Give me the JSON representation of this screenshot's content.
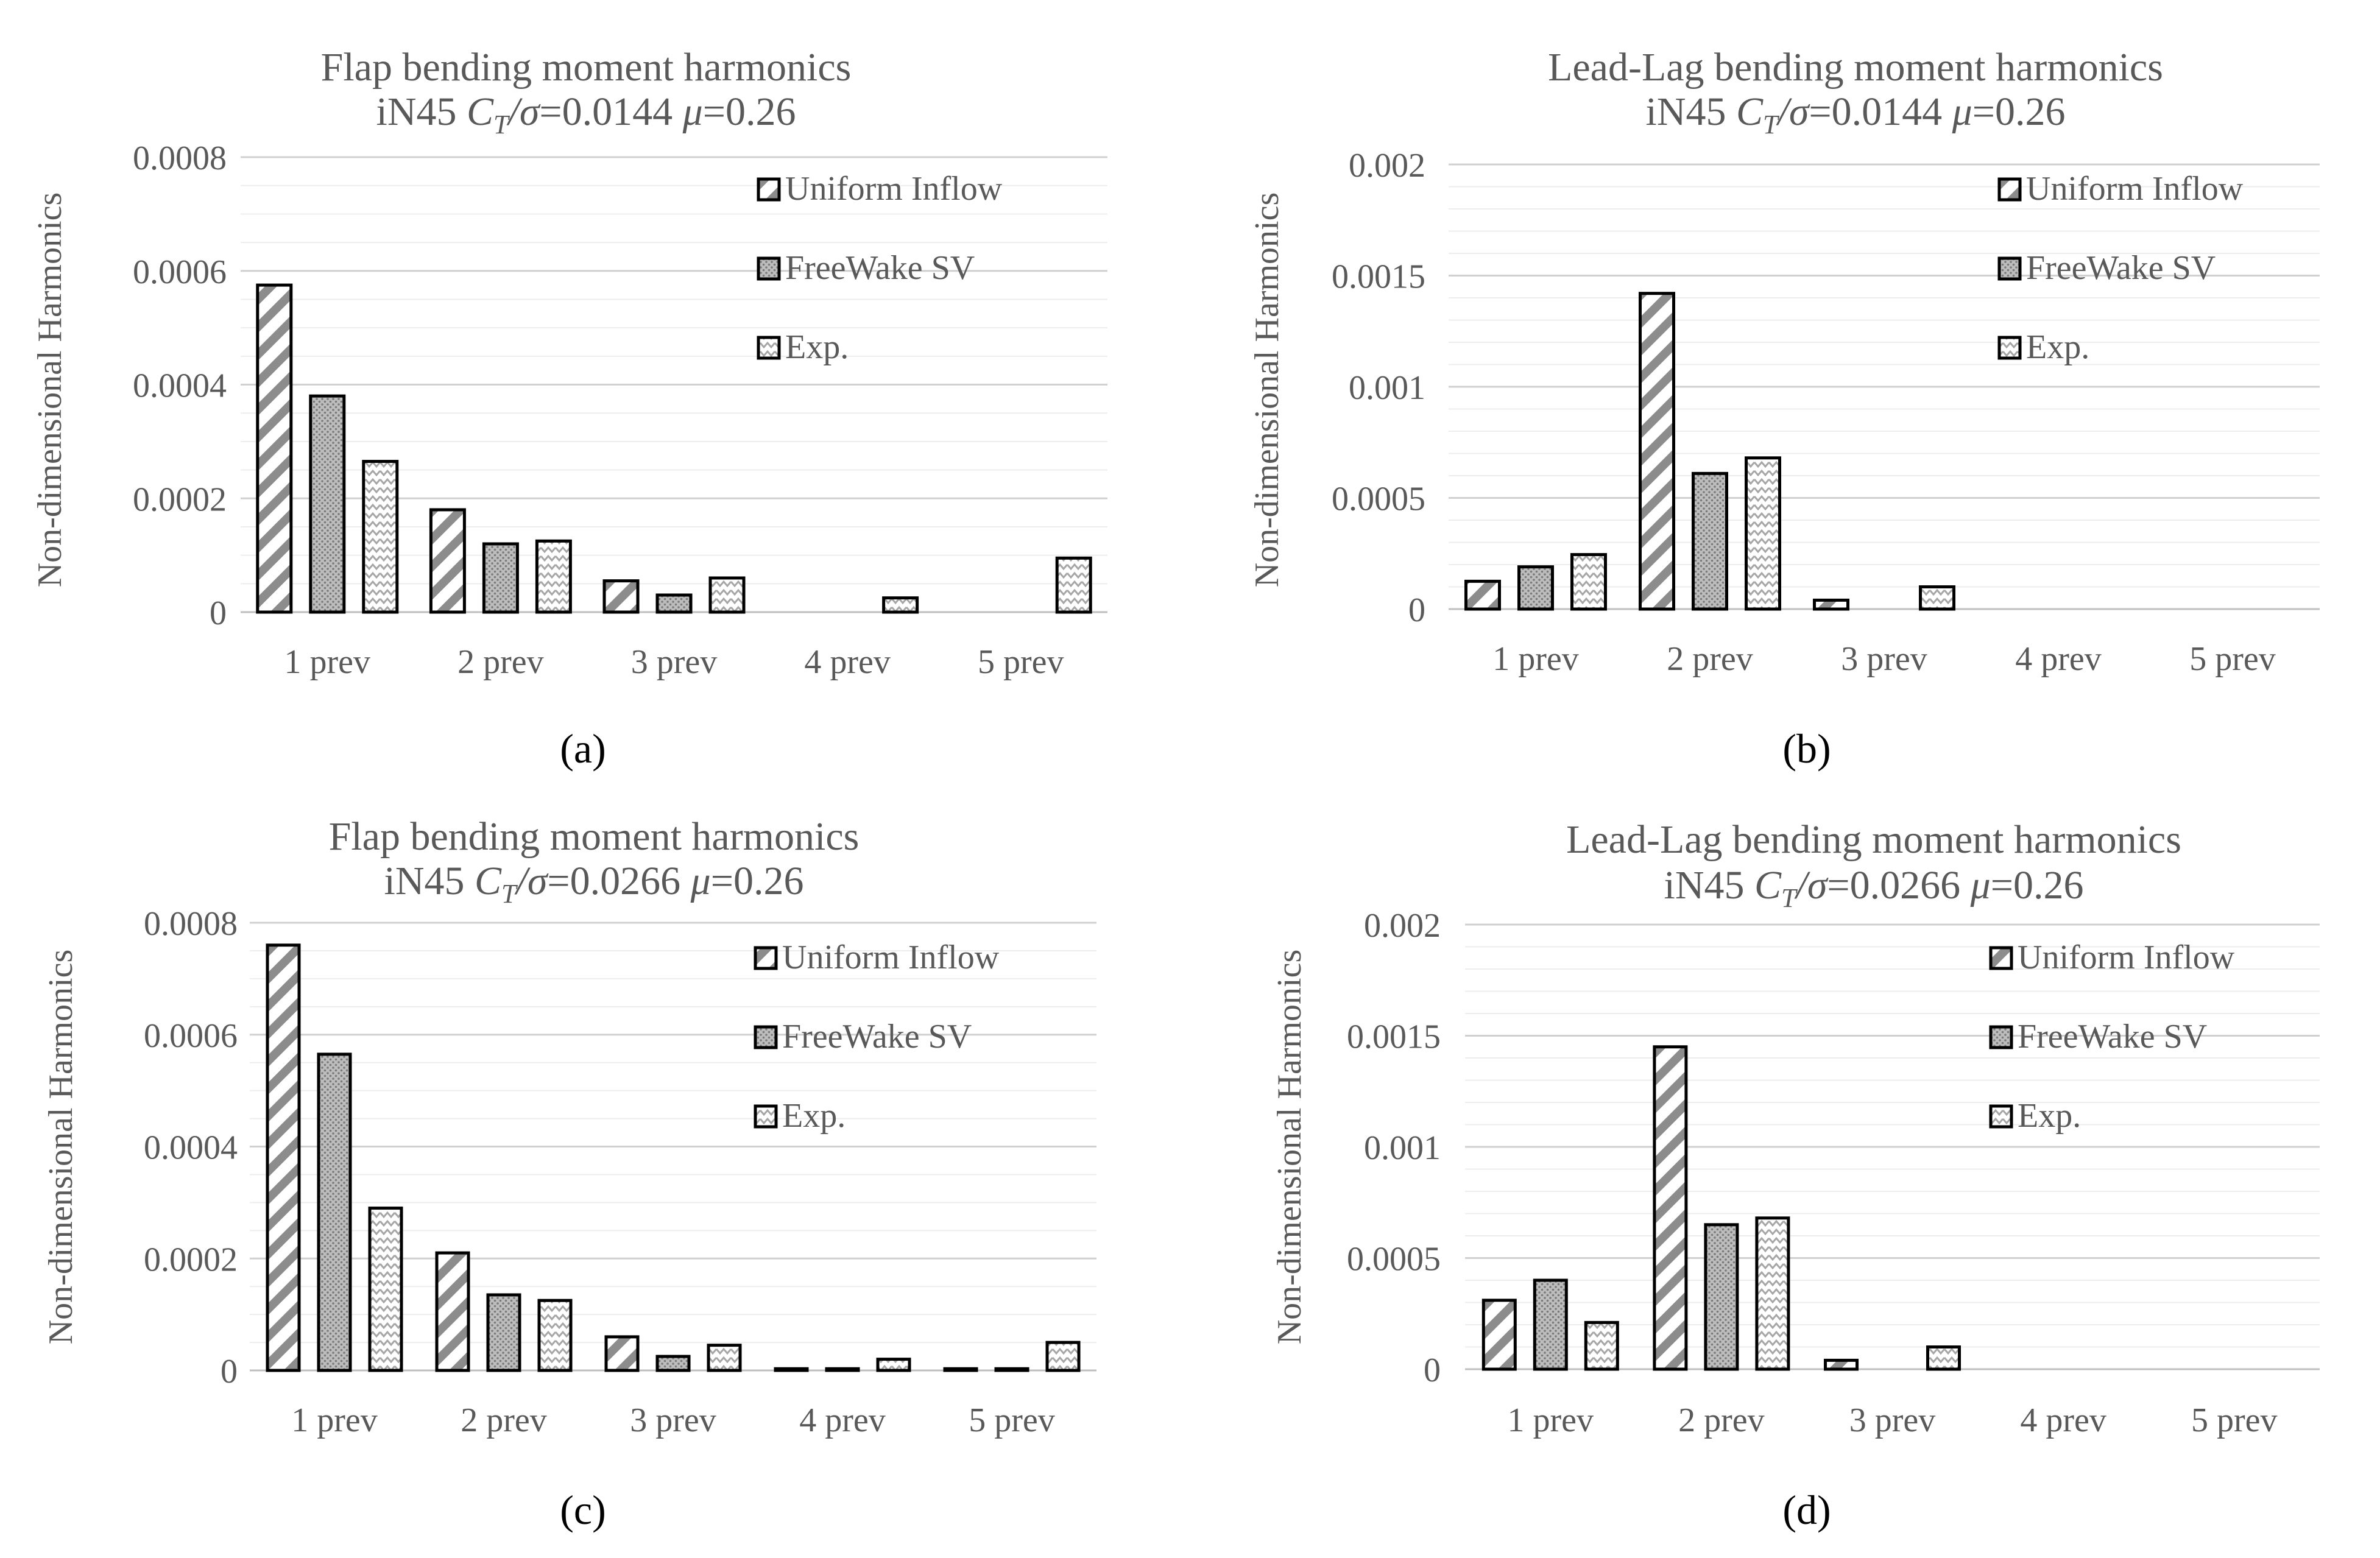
{
  "figure": {
    "labels": [
      "(a)",
      "(b)",
      "(c)",
      "(d)"
    ]
  },
  "legend": [
    "Uniform Inflow",
    "FreeWake SV",
    "Exp."
  ],
  "chart_data": [
    {
      "type": "bar",
      "title": "Flap bending moment  harmonics",
      "subtitle": {
        "prefix": "iN45 ",
        "ct": "C",
        "ct_sub": "T",
        "sigma": "/σ",
        "ct_value": "=0.0144 ",
        "mu": "μ",
        "mu_value": "=0.26"
      },
      "ylabel": "Non-dimensional Harmonics",
      "categories": [
        "1 prev",
        "2 prev",
        "3 prev",
        "4 prev",
        "5 prev"
      ],
      "ylim": [
        0,
        0.0008
      ],
      "yticks": [
        "0",
        "0.0002",
        "0.0004",
        "0.0006",
        "0.0008"
      ],
      "ytick_values": [
        0,
        0.0002,
        0.0004,
        0.0006,
        0.0008
      ],
      "minor_step": 5e-05,
      "series": [
        {
          "name": "Uniform Inflow",
          "values": [
            0.000575,
            0.00018,
            5.5e-05,
            0.0,
            0.0
          ]
        },
        {
          "name": "FreeWake SV",
          "values": [
            0.00038,
            0.00012,
            3e-05,
            0.0,
            0.0
          ]
        },
        {
          "name": "Exp.",
          "values": [
            0.000265,
            0.000125,
            6e-05,
            2.5e-05,
            9.5e-05
          ]
        }
      ]
    },
    {
      "type": "bar",
      "title": "Lead-Lag bending moment  harmonics",
      "subtitle": {
        "prefix": "iN45 ",
        "ct": "C",
        "ct_sub": "T",
        "sigma": "/σ",
        "ct_value": "=0.0144 ",
        "mu": "μ",
        "mu_value": "=0.26"
      },
      "ylabel": "Non-dimensional Harmonics",
      "categories": [
        "1 prev",
        "2 prev",
        "3 prev",
        "4 prev",
        "5 prev"
      ],
      "ylim": [
        0,
        0.002
      ],
      "yticks": [
        "0",
        "0.0005",
        "0.001",
        "0.0015",
        "0.002"
      ],
      "ytick_values": [
        0,
        0.0005,
        0.001,
        0.0015,
        0.002
      ],
      "minor_step": 0.0001,
      "series": [
        {
          "name": "Uniform Inflow",
          "values": [
            0.000125,
            0.00142,
            4e-05,
            0.0,
            0.0
          ]
        },
        {
          "name": "FreeWake SV",
          "values": [
            0.00019,
            0.00061,
            0.0,
            0.0,
            0.0
          ]
        },
        {
          "name": "Exp.",
          "values": [
            0.000245,
            0.00068,
            0.0001,
            0.0,
            0.0
          ]
        }
      ]
    },
    {
      "type": "bar",
      "title": "Flap bending moment  harmonics",
      "subtitle": {
        "prefix": "iN45 ",
        "ct": "C",
        "ct_sub": "T",
        "sigma": "/σ",
        "ct_value": "=0.0266 ",
        "mu": "μ",
        "mu_value": "=0.26"
      },
      "ylabel": "Non-dimensional Harmonics",
      "categories": [
        "1 prev",
        "2 prev",
        "3 prev",
        "4 prev",
        "5 prev"
      ],
      "ylim": [
        0,
        0.0008
      ],
      "yticks": [
        "0",
        "0.0002",
        "0.0004",
        "0.0006",
        "0.0008"
      ],
      "ytick_values": [
        0,
        0.0002,
        0.0004,
        0.0006,
        0.0008
      ],
      "minor_step": 5e-05,
      "series": [
        {
          "name": "Uniform Inflow",
          "values": [
            0.00076,
            0.00021,
            6e-05,
            3e-06,
            3e-06
          ]
        },
        {
          "name": "FreeWake SV",
          "values": [
            0.000565,
            0.000135,
            2.5e-05,
            3e-06,
            3e-06
          ]
        },
        {
          "name": "Exp.",
          "values": [
            0.00029,
            0.000125,
            4.5e-05,
            2e-05,
            5e-05
          ]
        }
      ]
    },
    {
      "type": "bar",
      "title": "Lead-Lag bending moment  harmonics",
      "subtitle": {
        "prefix": "iN45 ",
        "ct": "C",
        "ct_sub": "T",
        "sigma": "/σ",
        "ct_value": "=0.0266 ",
        "mu": "μ",
        "mu_value": "=0.26"
      },
      "ylabel": "Non-dimensional Harmonics",
      "categories": [
        "1 prev",
        "2 prev",
        "3 prev",
        "4 prev",
        "5 prev"
      ],
      "ylim": [
        0,
        0.002
      ],
      "yticks": [
        "0",
        "0.0005",
        "0.001",
        "0.0015",
        "0.002"
      ],
      "ytick_values": [
        0,
        0.0005,
        0.001,
        0.0015,
        0.002
      ],
      "minor_step": 0.0001,
      "series": [
        {
          "name": "Uniform Inflow",
          "values": [
            0.00031,
            0.00145,
            4e-05,
            0.0,
            0.0
          ]
        },
        {
          "name": "FreeWake SV",
          "values": [
            0.0004,
            0.00065,
            0.0,
            0.0,
            0.0
          ]
        },
        {
          "name": "Exp.",
          "values": [
            0.00021,
            0.00068,
            0.0001,
            0.0,
            0.0
          ]
        }
      ]
    }
  ]
}
